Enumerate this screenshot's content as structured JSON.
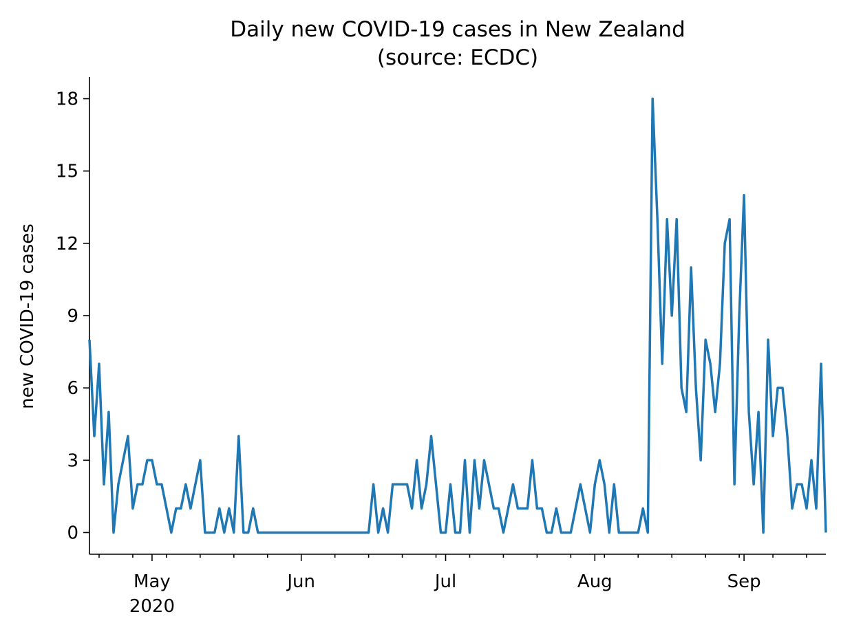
{
  "chart_data": {
    "type": "line",
    "title": "Daily new COVID-19 cases in New Zealand",
    "subtitle": "(source: ECDC)",
    "xlabel": "",
    "ylabel": "new COVID-19 cases",
    "x_start": "2020-04-18",
    "x_end": "2020-09-17",
    "xlim": [
      "2020-04-18",
      "2020-09-18"
    ],
    "ylim": [
      -0.9,
      18.9
    ],
    "yticks": [
      0,
      3,
      6,
      9,
      12,
      15,
      18
    ],
    "xticks_major": [
      {
        "date": "2020-05-01",
        "label": "May",
        "sublabel": "2020"
      },
      {
        "date": "2020-06-01",
        "label": "Jun",
        "sublabel": ""
      },
      {
        "date": "2020-07-01",
        "label": "Jul",
        "sublabel": ""
      },
      {
        "date": "2020-08-01",
        "label": "Aug",
        "sublabel": ""
      },
      {
        "date": "2020-09-01",
        "label": "Sep",
        "sublabel": ""
      }
    ],
    "grid": false,
    "line_color": "#1f77b4",
    "series": [
      {
        "values": [
          8,
          4,
          7,
          2,
          5,
          0,
          2,
          3,
          4,
          1,
          2,
          2,
          3,
          3,
          2,
          2,
          1,
          0,
          1,
          1,
          2,
          1,
          2,
          3,
          0,
          0,
          0,
          1,
          0,
          1,
          0,
          4,
          0,
          0,
          1,
          0,
          0,
          0,
          0,
          0,
          0,
          0,
          0,
          0,
          0,
          0,
          0,
          0,
          0,
          0,
          0,
          0,
          0,
          0,
          0,
          0,
          0,
          0,
          0,
          2,
          0,
          1,
          0,
          2,
          2,
          2,
          2,
          1,
          3,
          1,
          2,
          4,
          2,
          0,
          0,
          2,
          0,
          0,
          3,
          0,
          3,
          1,
          3,
          2,
          1,
          1,
          0,
          1,
          2,
          1,
          1,
          1,
          3,
          1,
          1,
          0,
          0,
          1,
          0,
          0,
          0,
          1,
          2,
          1,
          0,
          2,
          3,
          2,
          0,
          2,
          0,
          0,
          0,
          0,
          0,
          1,
          0,
          18,
          13,
          7,
          13,
          9,
          13,
          6,
          5,
          11,
          6,
          3,
          8,
          7,
          5,
          7,
          12,
          13,
          2,
          9,
          14,
          5,
          2,
          5,
          0,
          8,
          4,
          6,
          6,
          4,
          1,
          2,
          2,
          1,
          3,
          1,
          7,
          0
        ]
      }
    ]
  }
}
